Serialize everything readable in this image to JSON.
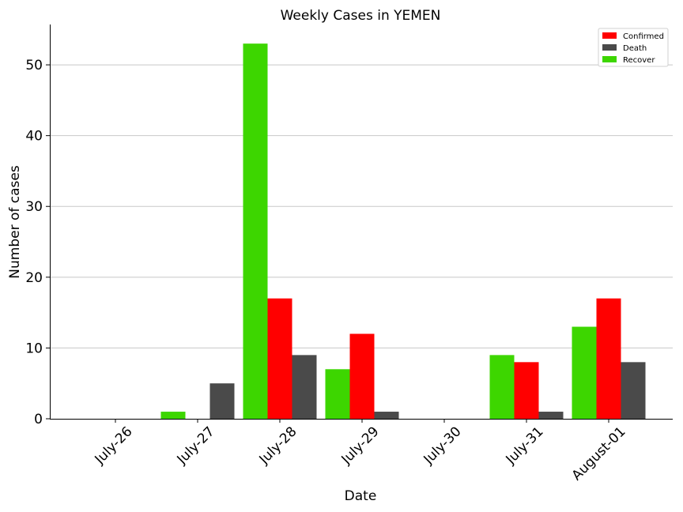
{
  "chart_data": {
    "type": "bar",
    "title": "Weekly Cases in YEMEN",
    "xlabel": "Date",
    "ylabel": "Number of cases",
    "categories": [
      "July-26",
      "July-27",
      "July-28",
      "July-29",
      "July-30",
      "July-31",
      "August-01"
    ],
    "series": [
      {
        "name": "Recover",
        "color": "#3dd600",
        "values": [
          0,
          1,
          53,
          7,
          0,
          9,
          13
        ]
      },
      {
        "name": "Confirmed",
        "color": "#ff0000",
        "values": [
          0,
          0,
          17,
          12,
          0,
          8,
          17
        ]
      },
      {
        "name": "Death",
        "color": "#4a4a4a",
        "values": [
          0,
          5,
          9,
          1,
          0,
          1,
          8
        ]
      }
    ],
    "legend_order": [
      "Confirmed",
      "Death",
      "Recover"
    ],
    "ylim": [
      0,
      55.7
    ],
    "yticks": [
      0,
      10,
      20,
      30,
      40,
      50
    ],
    "grid": "horizontal",
    "legend_position": "top-right"
  }
}
